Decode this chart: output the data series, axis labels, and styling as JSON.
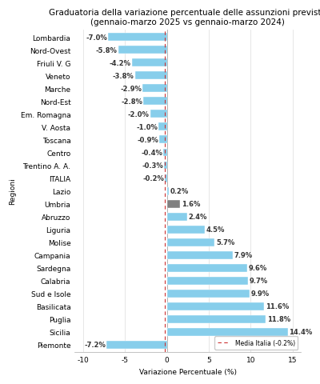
{
  "regions": [
    "Lombardia",
    "Nord-Ovest",
    "Friuli V. G",
    "Veneto",
    "Marche",
    "Nord-Est",
    "Em. Romagna",
    "V. Aosta",
    "Toscana",
    "Centro",
    "Trentino A. A.",
    "ITALIA",
    "Lazio",
    "Umbria",
    "Abruzzo",
    "Liguria",
    "Molise",
    "Campania",
    "Sardegna",
    "Calabria",
    "Sud e Isole",
    "Basilicata",
    "Puglia",
    "Sicilia",
    "Piemonte"
  ],
  "values": [
    -7.0,
    -5.8,
    -4.2,
    -3.8,
    -2.9,
    -2.8,
    -2.0,
    -1.0,
    -0.9,
    -0.4,
    -0.3,
    -0.2,
    0.2,
    1.6,
    2.4,
    4.5,
    5.7,
    7.9,
    9.6,
    9.7,
    9.9,
    11.6,
    11.8,
    14.4,
    -7.2
  ],
  "bar_colors": [
    "#87CEEB",
    "#87CEEB",
    "#87CEEB",
    "#87CEEB",
    "#87CEEB",
    "#87CEEB",
    "#87CEEB",
    "#87CEEB",
    "#87CEEB",
    "#87CEEB",
    "#87CEEB",
    "#87CEEB",
    "#87CEEB",
    "#808080",
    "#87CEEB",
    "#87CEEB",
    "#87CEEB",
    "#87CEEB",
    "#87CEEB",
    "#87CEEB",
    "#87CEEB",
    "#87CEEB",
    "#87CEEB",
    "#87CEEB",
    "#87CEEB"
  ],
  "title_line1": "Graduatoria della variazione percentuale delle assunzioni previste",
  "title_line2": "(gennaio-marzo 2025 vs gennaio-marzo 2024)",
  "xlabel": "Variazione Percentuale (%)",
  "ylabel": "Regioni",
  "xlim": [
    -11,
    16
  ],
  "media_italia": -0.2,
  "media_label": "Media Italia (-0.2%)",
  "background_color": "#ffffff",
  "grid_color": "#dddddd",
  "title_fontsize": 7.5,
  "label_fontsize": 6.0,
  "tick_fontsize": 6.5,
  "bar_height": 0.62,
  "xticks": [
    -10,
    -5,
    0,
    5,
    10,
    15
  ]
}
